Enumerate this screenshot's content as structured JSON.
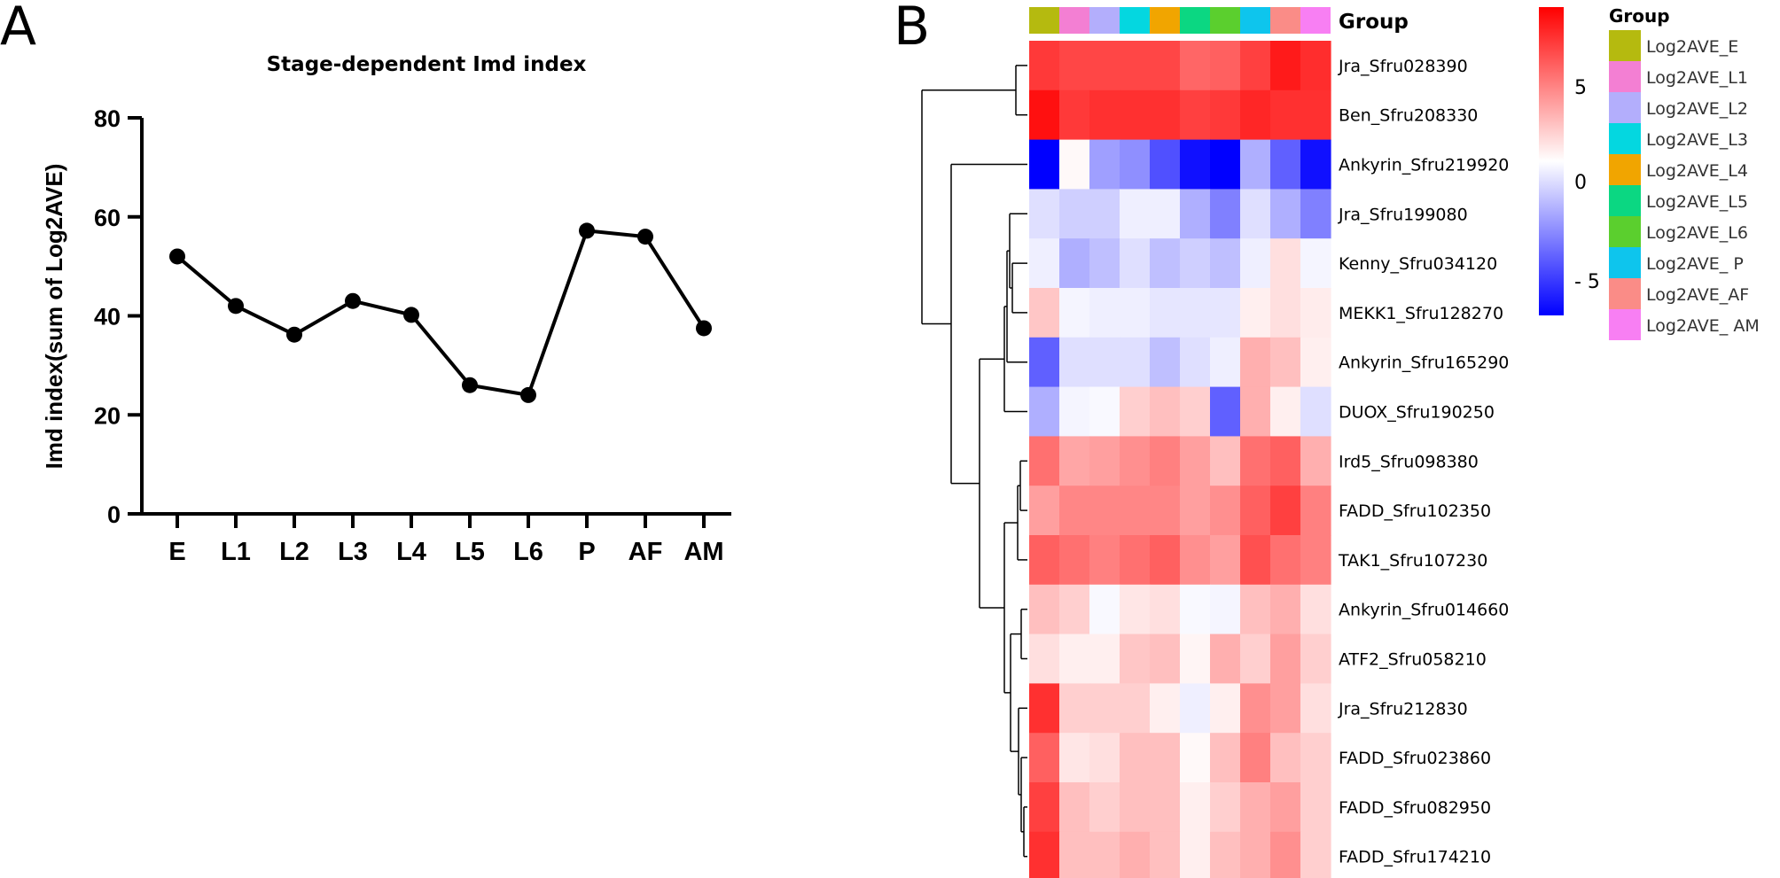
{
  "panels": {
    "a": "A",
    "b": "B"
  },
  "chart_data": [
    {
      "type": "line",
      "title": "Stage-dependent Imd index",
      "xlabel": "",
      "ylabel": "Imd index(sum of Log2AVE)",
      "categories": [
        "E",
        "L1",
        "L2",
        "L3",
        "L4",
        "L5",
        "L6",
        "P",
        "AF",
        "AM"
      ],
      "values": [
        52,
        42,
        36.2,
        43,
        40.2,
        26,
        24,
        57.2,
        56,
        37.5
      ],
      "ylim": [
        0,
        80
      ],
      "yticks": [
        0,
        20,
        40,
        60,
        80
      ],
      "grid": false,
      "color": "#000000"
    },
    {
      "type": "heatmap",
      "group_header": "Group",
      "columns": [
        "Log2AVE_E",
        "Log2AVE_L1",
        "Log2AVE_L2",
        "Log2AVE_L3",
        "Log2AVE_L4",
        "Log2AVE_L5",
        "Log2AVE_L6",
        "Log2AVE_ P",
        "Log2AVE_AF",
        "Log2AVE_ AM"
      ],
      "column_colors": [
        "#B5BA0F",
        "#F37FD3",
        "#B3AEFC",
        "#04D7E0",
        "#F1A500",
        "#0BD782",
        "#5BCF2E",
        "#0EC5ED",
        "#FA8C87",
        "#F87FF3"
      ],
      "rows": [
        "Jra_Sfru028390",
        "Ben_Sfru208330",
        "Ankyrin_Sfru219920",
        "Jra_Sfru199080",
        "Kenny_Sfru034120",
        "MEKK1_Sfru128270",
        "Ankyrin_Sfru165290",
        "DUOX_Sfru190250",
        "Ird5_Sfru098380",
        "FADD_Sfru102350",
        "TAK1_Sfru107230",
        "Ankyrin_Sfru014660",
        "ATF2_Sfru058210",
        "Jra_Sfru212830",
        "FADD_Sfru023860",
        "FADD_Sfru082950",
        "FADD_Sfru174210"
      ],
      "values": [
        [
          6.2,
          5.8,
          5.8,
          5.8,
          5.8,
          4.8,
          5.0,
          6.0,
          7.2,
          6.6
        ],
        [
          7.5,
          6.2,
          6.5,
          6.5,
          6.5,
          6.0,
          6.2,
          6.8,
          6.5,
          6.5
        ],
        [
          -8.0,
          0.2,
          -3.0,
          -3.5,
          -5.5,
          -7.5,
          -8.0,
          -2.5,
          -5.0,
          -7.5
        ],
        [
          -1.0,
          -1.5,
          -1.5,
          -0.5,
          -0.5,
          -2.5,
          -4.0,
          -1.0,
          -2.5,
          -4.0
        ],
        [
          -0.5,
          -2.5,
          -2.0,
          -1.0,
          -2.0,
          -1.5,
          -2.0,
          -0.5,
          1.0,
          -0.3
        ],
        [
          1.8,
          -0.3,
          -0.5,
          -0.5,
          -0.8,
          -0.8,
          -0.8,
          0.5,
          1.0,
          0.6
        ],
        [
          -5.0,
          -1.0,
          -1.0,
          -1.0,
          -2.0,
          -1.0,
          -0.5,
          2.5,
          2.0,
          0.5
        ],
        [
          -2.5,
          -0.3,
          -0.2,
          1.5,
          2.0,
          1.5,
          -5.0,
          2.5,
          0.5,
          -1.0
        ],
        [
          4.5,
          2.8,
          3.0,
          3.5,
          4.0,
          3.0,
          2.0,
          4.5,
          5.0,
          2.5
        ],
        [
          3.0,
          3.8,
          3.8,
          3.8,
          3.8,
          3.0,
          3.5,
          5.0,
          6.0,
          4.0
        ],
        [
          5.0,
          4.5,
          4.0,
          4.5,
          5.0,
          3.5,
          3.0,
          5.5,
          4.5,
          4.0
        ],
        [
          2.0,
          1.5,
          -0.2,
          0.8,
          1.0,
          -0.2,
          -0.3,
          2.0,
          2.5,
          1.0
        ],
        [
          1.0,
          0.5,
          0.5,
          1.8,
          2.0,
          0.3,
          2.5,
          1.5,
          3.0,
          1.5
        ],
        [
          6.5,
          1.5,
          1.5,
          1.5,
          0.5,
          -0.5,
          0.5,
          3.5,
          3.0,
          1.0
        ],
        [
          5.0,
          0.8,
          1.0,
          2.0,
          2.0,
          0.2,
          2.0,
          4.0,
          2.0,
          1.5
        ],
        [
          6.0,
          2.0,
          1.5,
          2.0,
          2.0,
          0.5,
          1.5,
          2.5,
          3.0,
          1.5
        ],
        [
          6.5,
          2.0,
          2.0,
          2.5,
          2.0,
          0.5,
          2.0,
          2.5,
          3.5,
          1.5
        ]
      ],
      "color_scale": {
        "min": -8,
        "max": 8,
        "low": "#0000FF",
        "mid": "#FFFFFF",
        "high": "#FF0000"
      },
      "colorbar_ticks": [
        "5",
        "0",
        "- 5"
      ],
      "legend_title": "Group",
      "legend_labels": [
        "Log2AVE_E",
        "Log2AVE_L1",
        "Log2AVE_L2",
        "Log2AVE_L3",
        "Log2AVE_L4",
        "Log2AVE_L5",
        "Log2AVE_L6",
        "Log2AVE_ P",
        "Log2AVE_AF",
        "Log2AVE_ AM"
      ],
      "legend_placement": "right"
    }
  ]
}
